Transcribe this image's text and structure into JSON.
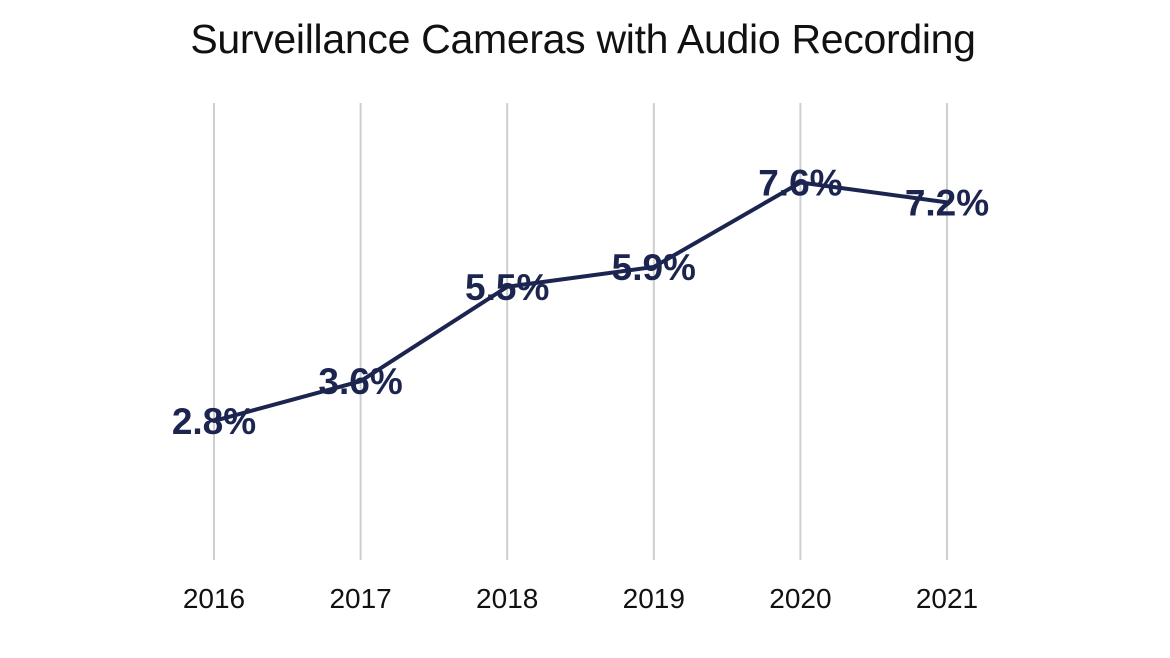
{
  "chart_data": {
    "type": "line",
    "title": "Surveillance Cameras with Audio Recording",
    "xlabel": "",
    "ylabel": "",
    "categories": [
      "2016",
      "2017",
      "2018",
      "2019",
      "2020",
      "2021"
    ],
    "series": [
      {
        "name": "Surveillance Cameras with Audio Recording",
        "values": [
          2.8,
          3.6,
          5.5,
          5.9,
          7.6,
          7.2
        ],
        "labels": [
          "2.8%",
          "3.6%",
          "5.5%",
          "5.9%",
          "7.6%",
          "7.2%"
        ],
        "color": "#1b2550"
      }
    ],
    "ylim": [
      0,
      9.2
    ],
    "grid": "vertical",
    "legend": "none"
  }
}
